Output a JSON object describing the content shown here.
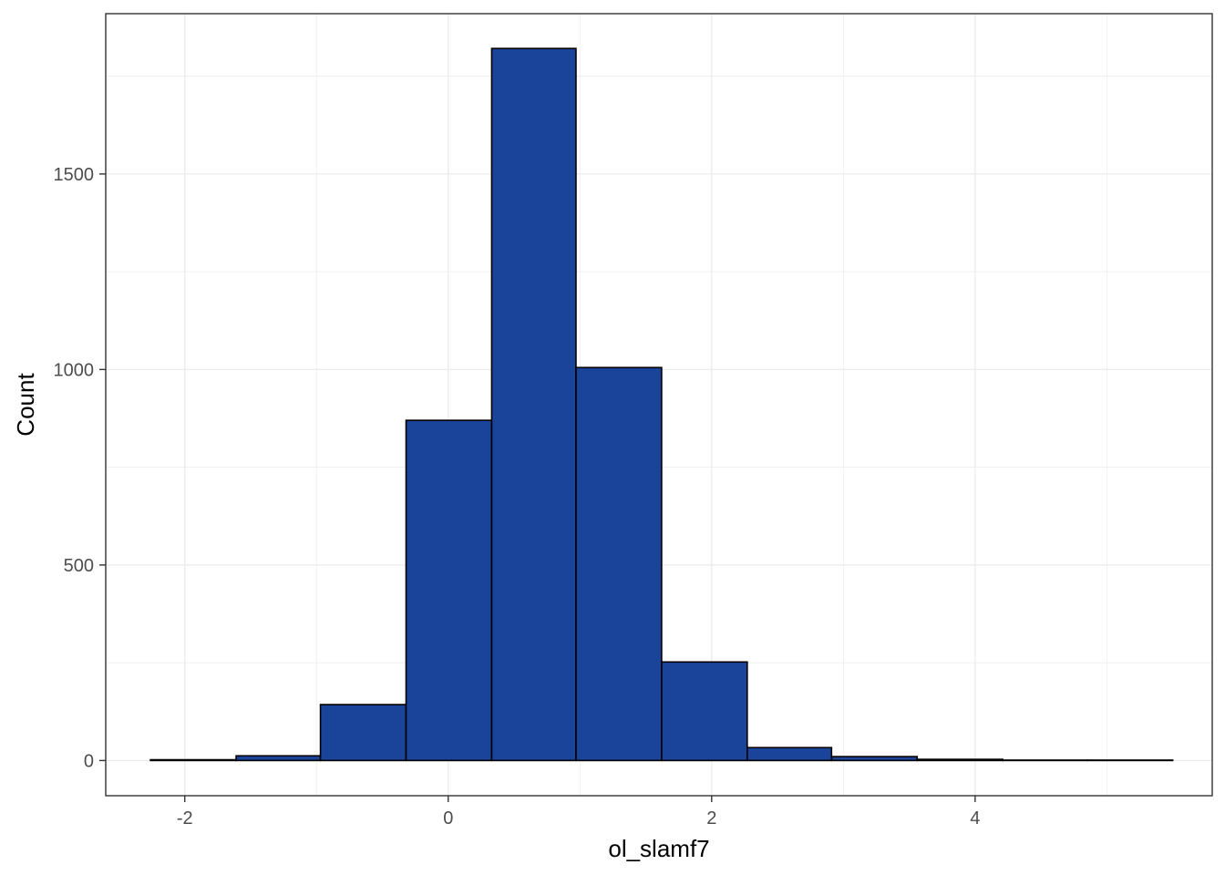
{
  "chart_data": {
    "type": "bar",
    "subtype": "histogram",
    "xlabel": "ol_slamf7",
    "ylabel": "Count",
    "xlim": [
      -2.6,
      5.8
    ],
    "ylim": [
      -90,
      1910
    ],
    "x_ticks": [
      -2,
      0,
      2,
      4
    ],
    "x_tick_labels": [
      "-2",
      "0",
      "2",
      "4"
    ],
    "y_ticks": [
      0,
      500,
      1000,
      1500
    ],
    "y_tick_labels": [
      "0",
      "500",
      "1000",
      "1500"
    ],
    "grid": true,
    "legend": "none",
    "bins": [
      {
        "x0": -2.26,
        "x1": -1.61,
        "count": 2
      },
      {
        "x0": -1.61,
        "x1": -0.97,
        "count": 12
      },
      {
        "x0": -0.97,
        "x1": -0.32,
        "count": 143
      },
      {
        "x0": -0.32,
        "x1": 0.33,
        "count": 870
      },
      {
        "x0": 0.33,
        "x1": 0.97,
        "count": 1821
      },
      {
        "x0": 0.97,
        "x1": 1.62,
        "count": 1005
      },
      {
        "x0": 1.62,
        "x1": 2.27,
        "count": 252
      },
      {
        "x0": 2.27,
        "x1": 2.91,
        "count": 33
      },
      {
        "x0": 2.91,
        "x1": 3.56,
        "count": 10
      },
      {
        "x0": 3.56,
        "x1": 4.21,
        "count": 3
      },
      {
        "x0": 4.21,
        "x1": 4.85,
        "count": 1
      },
      {
        "x0": 4.85,
        "x1": 5.5,
        "count": 1
      }
    ],
    "colors": {
      "bar_fill": "#1a4499",
      "bar_stroke": "#000000",
      "grid": "#ebebeb",
      "panel_border": "#333333"
    }
  }
}
